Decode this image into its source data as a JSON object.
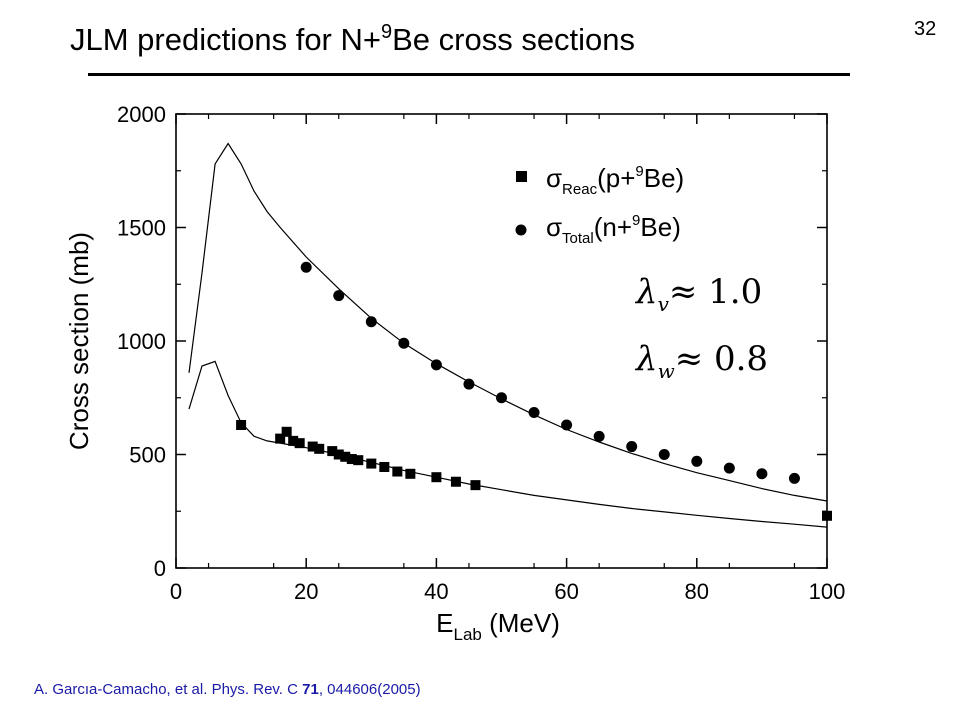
{
  "slide": {
    "title_main": "JLM predictions for N+",
    "title_sup": "9",
    "title_end": "Be cross sections",
    "page_number": "32",
    "citation_prefix": "A. Garcıa-Camacho, et al. Phys. Rev. C ",
    "citation_volume": "71",
    "citation_suffix": ", 044606(2005)",
    "lambda_v_text": "≈ 1.0",
    "lambda_w_text": "≈ 0.8"
  },
  "chart_data": {
    "type": "scatter",
    "xlabel": "E_Lab (MeV)",
    "ylabel": "Cross section (mb)",
    "xlim": [
      0,
      100
    ],
    "ylim": [
      0,
      2000
    ],
    "x_ticks": [
      0,
      20,
      40,
      60,
      80,
      100
    ],
    "y_ticks": [
      0,
      500,
      1000,
      1500,
      2000
    ],
    "grid": false,
    "legend_position": "top-right",
    "series": [
      {
        "name": "σReac(p+9Be)",
        "marker": "square",
        "points": [
          [
            10,
            630
          ],
          [
            16,
            570
          ],
          [
            17,
            600
          ],
          [
            18,
            560
          ],
          [
            19,
            550
          ],
          [
            21,
            535
          ],
          [
            22,
            525
          ],
          [
            24,
            515
          ],
          [
            25,
            500
          ],
          [
            26,
            490
          ],
          [
            27,
            480
          ],
          [
            28,
            475
          ],
          [
            30,
            460
          ],
          [
            32,
            445
          ],
          [
            34,
            425
          ],
          [
            36,
            415
          ],
          [
            40,
            400
          ],
          [
            43,
            380
          ],
          [
            46,
            365
          ],
          [
            100,
            230
          ]
        ]
      },
      {
        "name": "σTotal(n+9Be)",
        "marker": "circle",
        "points": [
          [
            20,
            1325
          ],
          [
            25,
            1200
          ],
          [
            30,
            1085
          ],
          [
            35,
            990
          ],
          [
            40,
            895
          ],
          [
            45,
            810
          ],
          [
            50,
            750
          ],
          [
            55,
            685
          ],
          [
            60,
            630
          ],
          [
            65,
            580
          ],
          [
            70,
            535
          ],
          [
            75,
            500
          ],
          [
            80,
            470
          ],
          [
            85,
            440
          ],
          [
            90,
            415
          ],
          [
            95,
            395
          ]
        ]
      },
      {
        "name": "",
        "type": "line",
        "points": [
          [
            2,
            860
          ],
          [
            4,
            1300
          ],
          [
            6,
            1780
          ],
          [
            8,
            1870
          ],
          [
            10,
            1780
          ],
          [
            12,
            1660
          ],
          [
            14,
            1570
          ],
          [
            16,
            1500
          ],
          [
            20,
            1370
          ],
          [
            25,
            1230
          ],
          [
            30,
            1100
          ],
          [
            35,
            990
          ],
          [
            40,
            900
          ],
          [
            45,
            820
          ],
          [
            50,
            745
          ],
          [
            55,
            675
          ],
          [
            60,
            610
          ],
          [
            65,
            555
          ],
          [
            70,
            505
          ],
          [
            75,
            460
          ],
          [
            80,
            420
          ],
          [
            85,
            385
          ],
          [
            90,
            350
          ],
          [
            95,
            320
          ],
          [
            100,
            295
          ]
        ]
      },
      {
        "name": "",
        "type": "line",
        "points": [
          [
            2,
            700
          ],
          [
            4,
            890
          ],
          [
            6,
            910
          ],
          [
            8,
            760
          ],
          [
            10,
            640
          ],
          [
            12,
            580
          ],
          [
            14,
            560
          ],
          [
            16,
            550
          ],
          [
            20,
            530
          ],
          [
            25,
            500
          ],
          [
            30,
            465
          ],
          [
            35,
            430
          ],
          [
            40,
            400
          ],
          [
            45,
            370
          ],
          [
            50,
            345
          ],
          [
            55,
            320
          ],
          [
            60,
            300
          ],
          [
            65,
            280
          ],
          [
            70,
            262
          ],
          [
            75,
            247
          ],
          [
            80,
            232
          ],
          [
            85,
            218
          ],
          [
            90,
            205
          ],
          [
            95,
            193
          ],
          [
            100,
            180
          ]
        ]
      }
    ]
  }
}
